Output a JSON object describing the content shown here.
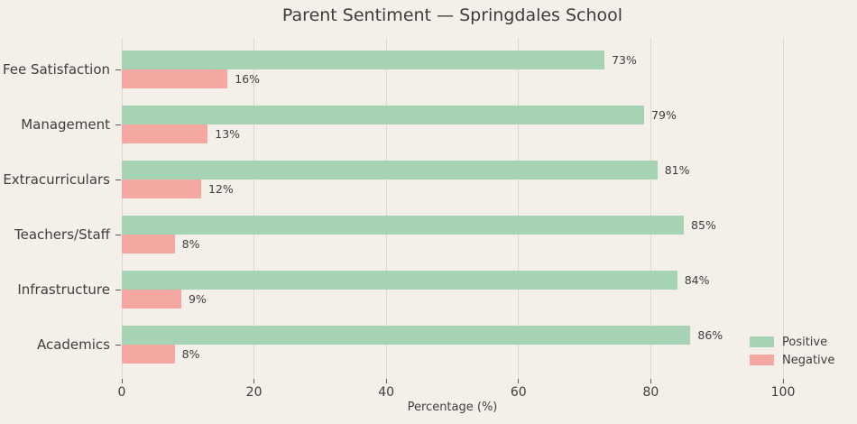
{
  "chart_data": {
    "type": "bar",
    "orientation": "horizontal",
    "title": "Parent Sentiment — Springdales School",
    "categories": [
      "Fee Satisfaction",
      "Management",
      "Extracurriculars",
      "Teachers/Staff",
      "Infrastructure",
      "Academics"
    ],
    "series": [
      {
        "name": "Positive",
        "color": "#a7d3b5",
        "values": [
          73,
          79,
          81,
          85,
          84,
          86
        ]
      },
      {
        "name": "Negative",
        "color": "#f5a8a2",
        "values": [
          16,
          13,
          12,
          8,
          9,
          8
        ]
      }
    ],
    "value_suffix": "%",
    "xlabel": "Percentage (%)",
    "xlim": [
      0,
      100
    ],
    "xticks": [
      0,
      20,
      40,
      60,
      80,
      100
    ],
    "grid": true,
    "legend": {
      "position": "lower-right",
      "entries": [
        "Positive",
        "Negative"
      ]
    }
  },
  "colors": {
    "background": "#f4efe9",
    "positive": "#a7d3b5",
    "negative": "#f5a8a2",
    "gridline": "#ded7d0",
    "text": "#3e3e3e"
  }
}
